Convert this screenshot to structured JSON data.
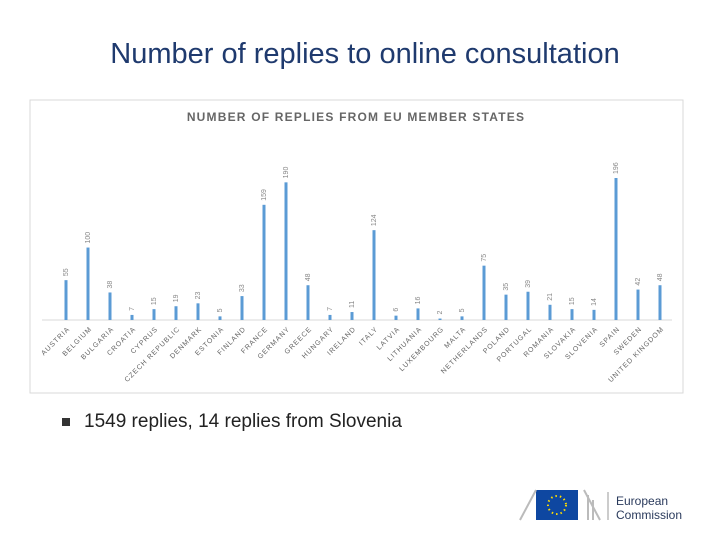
{
  "title": "Number of replies to online consultation",
  "chart_data": {
    "type": "bar",
    "title": "NUMBER OF REPLIES FROM EU MEMBER STATES",
    "color": "#5b9bd5",
    "categories": [
      "AUSTRIA",
      "BELGIUM",
      "BULGARIA",
      "CROATIA",
      "CYPRUS",
      "CZECH REPUBLIC",
      "DENMARK",
      "ESTONIA",
      "FINLAND",
      "FRANCE",
      "GERMANY",
      "GREECE",
      "HUNGARY",
      "IRELAND",
      "ITALY",
      "LATVIA",
      "LITHUANIA",
      "LUXEMBOURG",
      "MALTA",
      "NETHERLANDS",
      "POLAND",
      "PORTUGAL",
      "ROMANIA",
      "SLOVAKIA",
      "SLOVENIA",
      "SPAIN",
      "SWEDEN",
      "UNITED KINGDOM"
    ],
    "values": [
      55,
      100,
      38,
      7,
      15,
      19,
      23,
      5,
      33,
      159,
      190,
      48,
      7,
      11,
      124,
      6,
      16,
      2,
      5,
      75,
      35,
      39,
      21,
      15,
      14,
      196,
      42,
      48
    ]
  },
  "bullets": [
    "1549 replies, 14 replies from Slovenia"
  ],
  "footer": {
    "logo_line1": "European",
    "logo_line2": "Commission"
  }
}
